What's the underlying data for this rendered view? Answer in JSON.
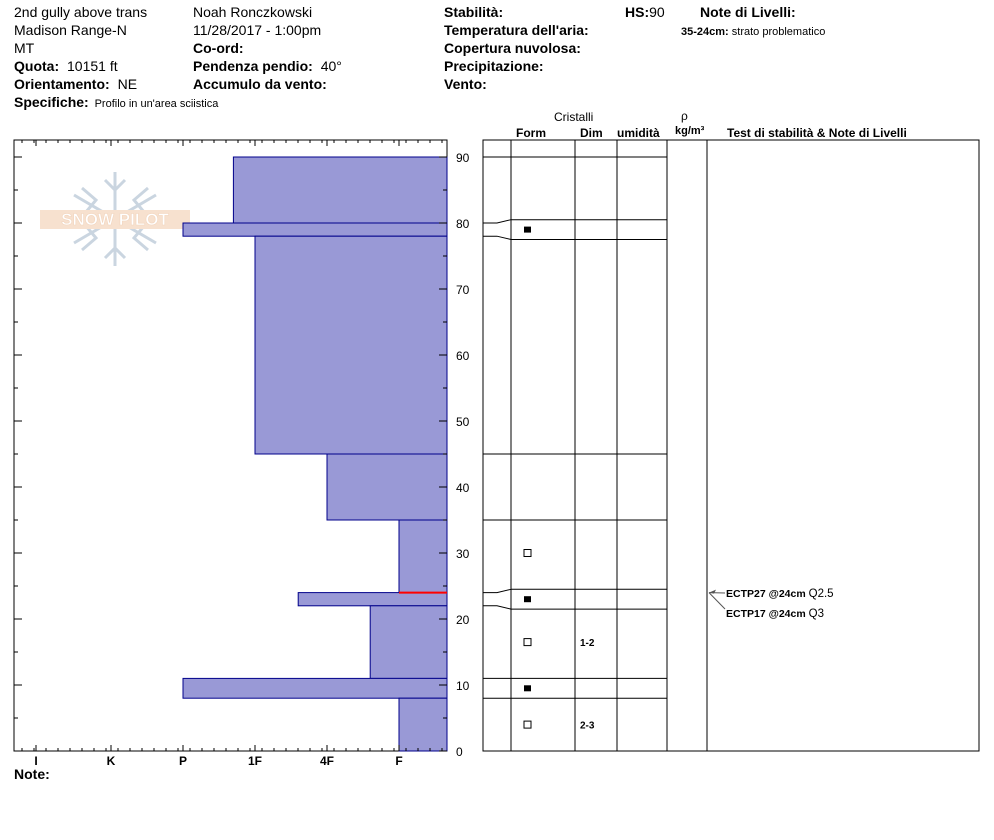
{
  "header": {
    "location": "2nd gully above trans",
    "range": "Madison Range-N",
    "state": "MT",
    "observer": "Noah Ronczkowski",
    "datetime": "11/28/2017 - 1:00pm",
    "elevation_label": "Quota:",
    "elevation_value": "10151 ft",
    "aspect_label": "Orientamento:",
    "aspect_value": "NE",
    "specifics_label": "Specifiche:",
    "specifics_value": "Profilo in un'area sciistica",
    "coord_label": "Co-ord:",
    "slope_label": "Pendenza pendio:",
    "slope_value": "40°",
    "wind_loading_label": "Accumulo da vento:",
    "stability_label": "Stabilità:",
    "air_temp_label": "Temperatura dell'aria:",
    "cloud_cover_label": "Copertura nuvolosa:",
    "precip_label": "Precipitazione:",
    "wind_label": "Vento:",
    "hs_label": "HS:",
    "hs_value": "90",
    "layer_notes_label": "Note di Livelli:",
    "layer_note_depth": "35-24cm:",
    "layer_note_text": "strato problematico"
  },
  "columns": {
    "crystals": "Cristalli",
    "form": "Form",
    "size": "Dim",
    "moisture": "umidità",
    "density_symbol": "ρ",
    "density_unit": "kg/m³",
    "tests_notes": "Test di stabilità & Note di Livelli"
  },
  "watermark": "SNOW PILOT",
  "notes_label": "Note:",
  "chart_data": {
    "type": "bar",
    "title": "",
    "xlabel": "",
    "ylabel": "",
    "hardness_scale": [
      "I",
      "K",
      "P",
      "1F",
      "4F",
      "F"
    ],
    "hardness_values_right_to_left": {
      "F": 1,
      "4F": 2,
      "1F": 3,
      "P": 4,
      "K": 5,
      "I": 6
    },
    "height_axis": {
      "min": 0,
      "max": 90,
      "ticks": [
        0,
        10,
        20,
        30,
        40,
        50,
        60,
        70,
        80,
        90
      ]
    },
    "layers": [
      {
        "top": 90,
        "bottom": 80,
        "hardness": 3.3
      },
      {
        "top": 80,
        "bottom": 78,
        "hardness": 4
      },
      {
        "top": 78,
        "bottom": 45,
        "hardness": 3
      },
      {
        "top": 45,
        "bottom": 35,
        "hardness": 2
      },
      {
        "top": 35,
        "bottom": 24,
        "hardness": 1
      },
      {
        "top": 24,
        "bottom": 22,
        "hardness": 2.4
      },
      {
        "top": 22,
        "bottom": 11,
        "hardness": 1.4
      },
      {
        "top": 11,
        "bottom": 8,
        "hardness": 4
      },
      {
        "top": 8,
        "bottom": 0,
        "hardness": 1
      }
    ],
    "weak_layer_marker_height": 24,
    "colors": {
      "fill": "#9999d6",
      "stroke": "#00008b",
      "weak_layer": "#ff0000"
    }
  },
  "grains": [
    {
      "height": 79,
      "form": "filled-square"
    },
    {
      "height": 30,
      "form": "open-square"
    },
    {
      "height": 23,
      "form": "filled-square"
    },
    {
      "height": 16.5,
      "form": "open-square",
      "size": "1-2"
    },
    {
      "height": 9.5,
      "form": "filled-square"
    },
    {
      "height": 4,
      "form": "open-square",
      "size": "2-3"
    }
  ],
  "layer_boundaries": [
    90,
    80.5,
    77.5,
    45,
    35,
    24.5,
    21.5,
    11,
    8
  ],
  "tests": [
    {
      "name": "ECTP27 @24cm",
      "score": "Q2.5"
    },
    {
      "name": "ECTP17 @24cm",
      "score": "Q3"
    }
  ]
}
